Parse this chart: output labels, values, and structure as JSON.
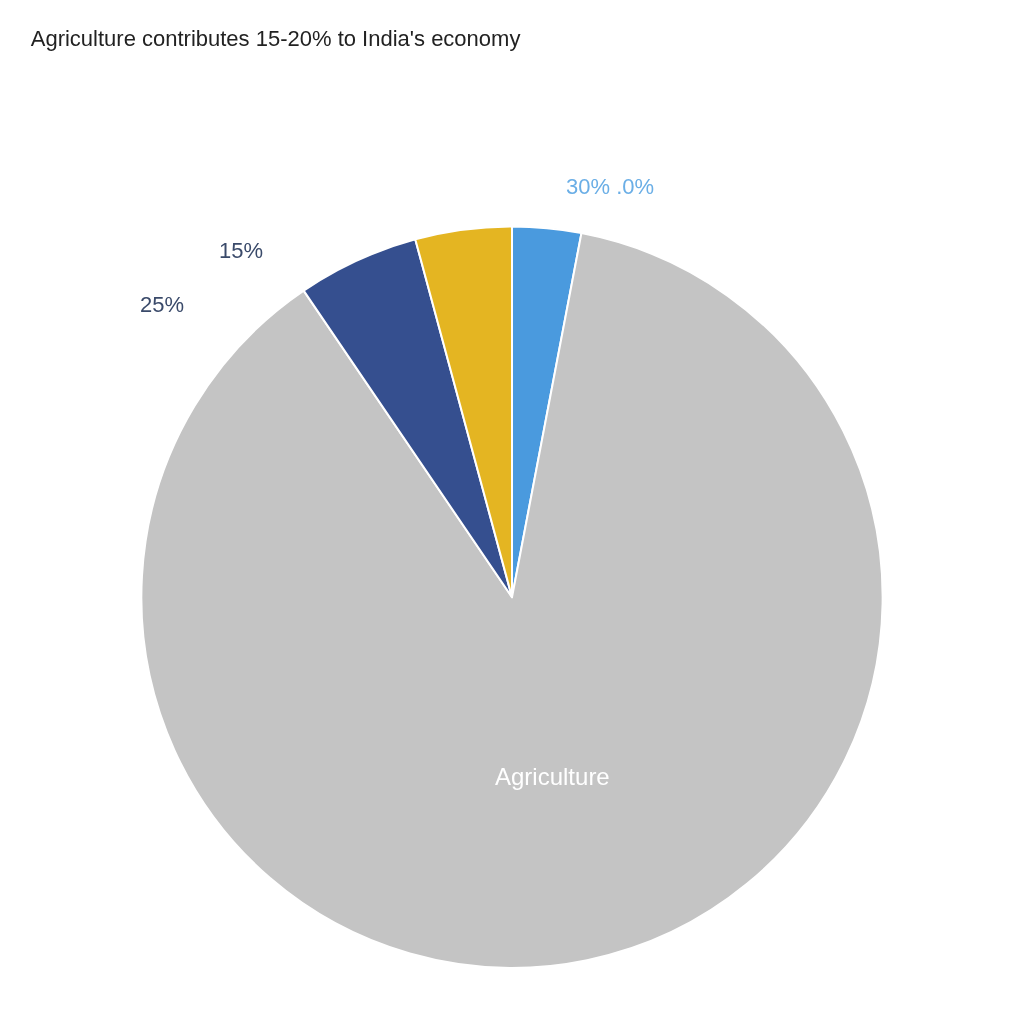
{
  "chart_data": {
    "type": "pie",
    "title": "Agriculture contributes 15-20% to India's economy",
    "categories": [
      null,
      "Agriculture",
      null,
      null
    ],
    "values": [
      3,
      87.5,
      5.3,
      4.2
    ],
    "colors": [
      "#4a9ade",
      "#c4c4c4",
      "#354f8f",
      "#e4b522"
    ],
    "annotations": [
      "30% .0%",
      "15%",
      "25%"
    ]
  }
}
